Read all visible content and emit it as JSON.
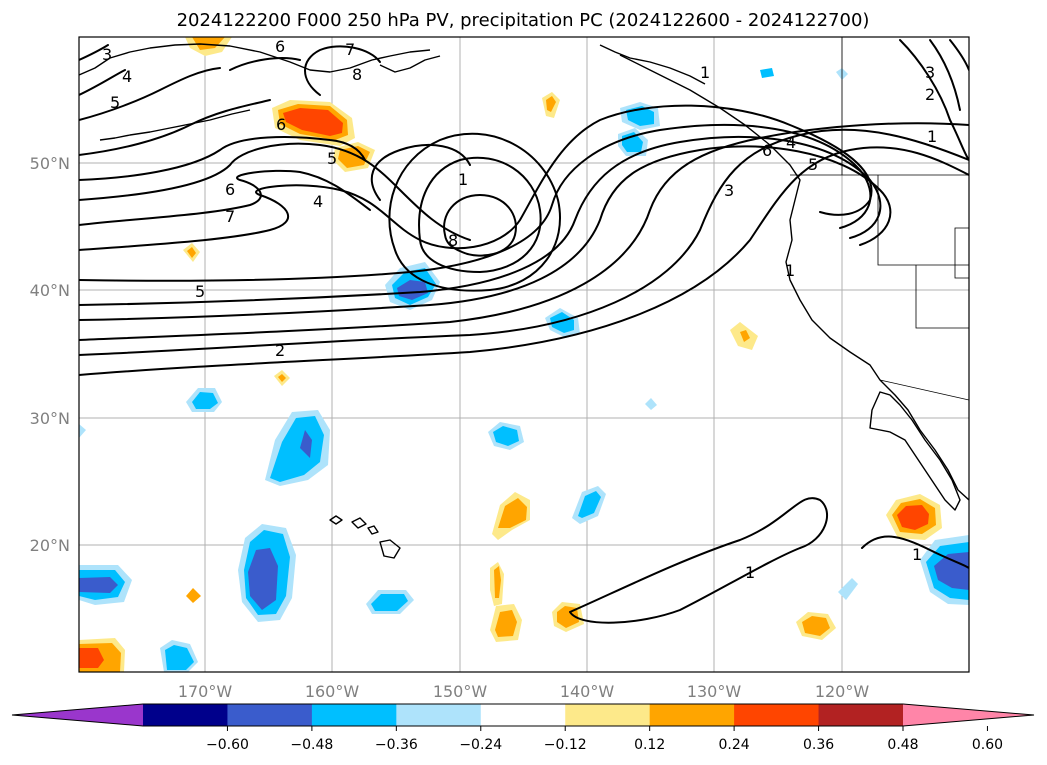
{
  "title": "2024122200 F000 250 hPa PV, precipitation PC (2024122600 - 2024122700)",
  "lon_labels": [
    "170°W",
    "160°W",
    "150°W",
    "140°W",
    "130°W",
    "120°W"
  ],
  "lat_labels": [
    "50°N",
    "40°N",
    "30°N",
    "20°N"
  ],
  "contour_labels": [
    "3",
    "4",
    "5",
    "6",
    "6",
    "7",
    "8",
    "1",
    "5",
    "6",
    "4",
    "7",
    "8",
    "5",
    "2",
    "1",
    "4",
    "6",
    "5",
    "3",
    "1",
    "3",
    "2",
    "1",
    "1",
    "1"
  ],
  "colorbar": {
    "ticks": [
      "−0.60",
      "−0.48",
      "−0.36",
      "−0.24",
      "−0.12",
      "0.12",
      "0.24",
      "0.36",
      "0.48",
      "0.60"
    ],
    "colors": [
      "#9a36cc",
      "#00008b",
      "#3a5ccc",
      "#00bfff",
      "#aee3fb",
      "#ffffff",
      "#fde98a",
      "#ffa500",
      "#ff4500",
      "#b22222",
      "#ff85a8"
    ]
  },
  "precip_colors": {
    "neg_light": "#aee3fb",
    "neg_mid": "#00bfff",
    "neg_dark": "#3a5ccc",
    "pos_light": "#fde98a",
    "pos_mid": "#ffa500",
    "pos_dark": "#ff4500"
  }
}
